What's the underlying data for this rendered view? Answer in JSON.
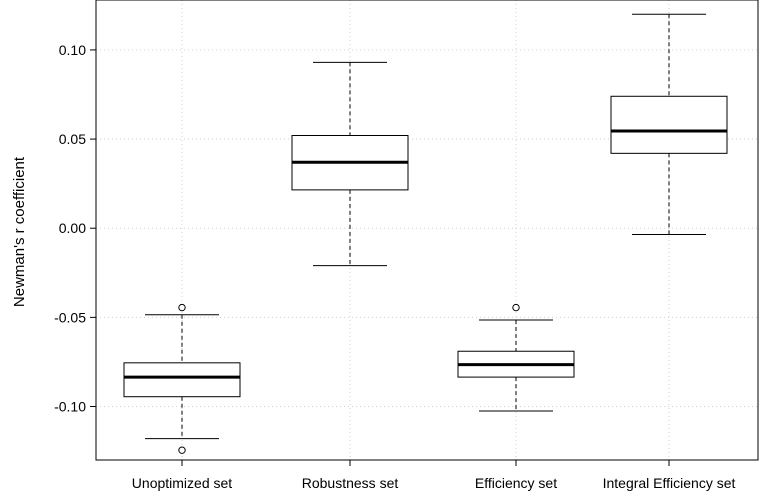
{
  "chart_data": {
    "type": "box",
    "title": "",
    "xlabel": "",
    "ylabel": "Newman's r coefficient",
    "ylim": [
      -0.13,
      0.128
    ],
    "yticks": [
      -0.1,
      -0.05,
      0.0,
      0.05,
      0.1
    ],
    "ytick_labels": [
      "-0.10",
      "-0.05",
      "0.00",
      "0.05",
      "0.10"
    ],
    "grid": true,
    "categories": [
      "Unoptimized set",
      "Robustness set",
      "Efficiency set",
      "Integral Efficiency set"
    ],
    "boxes": [
      {
        "category": "Unoptimized set",
        "whisker_low": -0.118,
        "q1": -0.0945,
        "median": -0.0835,
        "q3": -0.0755,
        "whisker_high": -0.0485,
        "outliers": [
          -0.0445,
          -0.1245
        ]
      },
      {
        "category": "Robustness set",
        "whisker_low": -0.021,
        "q1": 0.0215,
        "median": 0.037,
        "q3": 0.052,
        "whisker_high": 0.093,
        "outliers": []
      },
      {
        "category": "Efficiency set",
        "whisker_low": -0.1025,
        "q1": -0.0835,
        "median": -0.0765,
        "q3": -0.069,
        "whisker_high": -0.0515,
        "outliers": [
          -0.0445
        ]
      },
      {
        "category": "Integral Efficiency set",
        "whisker_low": -0.0035,
        "q1": 0.042,
        "median": 0.0545,
        "q3": 0.074,
        "whisker_high": 0.12,
        "outliers": []
      }
    ]
  }
}
